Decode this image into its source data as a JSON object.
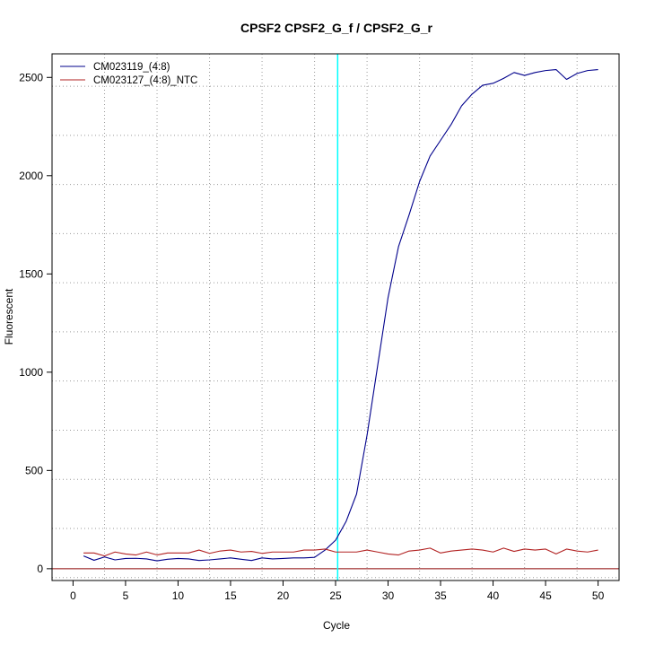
{
  "chart_data": {
    "type": "line",
    "title": "CPSF2  CPSF2_G_f / CPSF2_G_r",
    "xlabel": "Cycle",
    "ylabel": "Fluorescent",
    "xlim": [
      -2,
      52
    ],
    "ylim": [
      -60,
      2620
    ],
    "x_ticks": [
      0,
      5,
      10,
      15,
      20,
      25,
      30,
      35,
      40,
      45,
      50
    ],
    "y_ticks": [
      0,
      500,
      1000,
      1500,
      2000,
      2500
    ],
    "x_tick_labels": [
      "0",
      "5",
      "10",
      "15",
      "20",
      "25",
      "30",
      "35",
      "40",
      "45",
      "50"
    ],
    "y_tick_labels": [
      "0",
      "500",
      "1000",
      "1500",
      "2000",
      "2500"
    ],
    "grid": true,
    "x_gridlines": [
      3,
      8,
      13,
      18,
      23,
      28,
      33,
      38,
      43,
      48
    ],
    "y_gridlines": [
      -45,
      205,
      455,
      705,
      955,
      1205,
      1455,
      1705,
      1955,
      2205,
      2455
    ],
    "threshold_cycle": 25.2,
    "threshold_color": "#00ffff",
    "baseline_y": 0,
    "baseline_color": "#8b0000",
    "legend_position": "top-left",
    "x": [
      1,
      2,
      3,
      4,
      5,
      6,
      7,
      8,
      9,
      10,
      11,
      12,
      13,
      14,
      15,
      16,
      17,
      18,
      19,
      20,
      21,
      22,
      23,
      24,
      25,
      26,
      27,
      28,
      29,
      30,
      31,
      32,
      33,
      34,
      35,
      36,
      37,
      38,
      39,
      40,
      41,
      42,
      43,
      44,
      45,
      46,
      47,
      48,
      49,
      50
    ],
    "series": [
      {
        "name": "CM023119_(4:8)",
        "color": "#00008b",
        "values": [
          65,
          43,
          60,
          45,
          52,
          53,
          50,
          40,
          48,
          52,
          50,
          42,
          45,
          50,
          55,
          48,
          42,
          55,
          50,
          52,
          55,
          55,
          58,
          95,
          145,
          240,
          380,
          680,
          1030,
          1380,
          1640,
          1800,
          1970,
          2100,
          2180,
          2260,
          2355,
          2415,
          2460,
          2470,
          2495,
          2525,
          2510,
          2525,
          2535,
          2540,
          2490,
          2520,
          2535,
          2540
        ]
      },
      {
        "name": "CM023127_(4:8)_NTC",
        "color": "#b22222",
        "values": [
          80,
          80,
          65,
          85,
          75,
          70,
          85,
          70,
          80,
          80,
          80,
          95,
          78,
          90,
          95,
          85,
          88,
          78,
          85,
          85,
          85,
          95,
          95,
          100,
          85,
          85,
          85,
          95,
          85,
          75,
          70,
          90,
          95,
          105,
          80,
          90,
          95,
          100,
          95,
          85,
          105,
          88,
          100,
          95,
          100,
          75,
          100,
          90,
          85,
          95
        ]
      }
    ]
  }
}
